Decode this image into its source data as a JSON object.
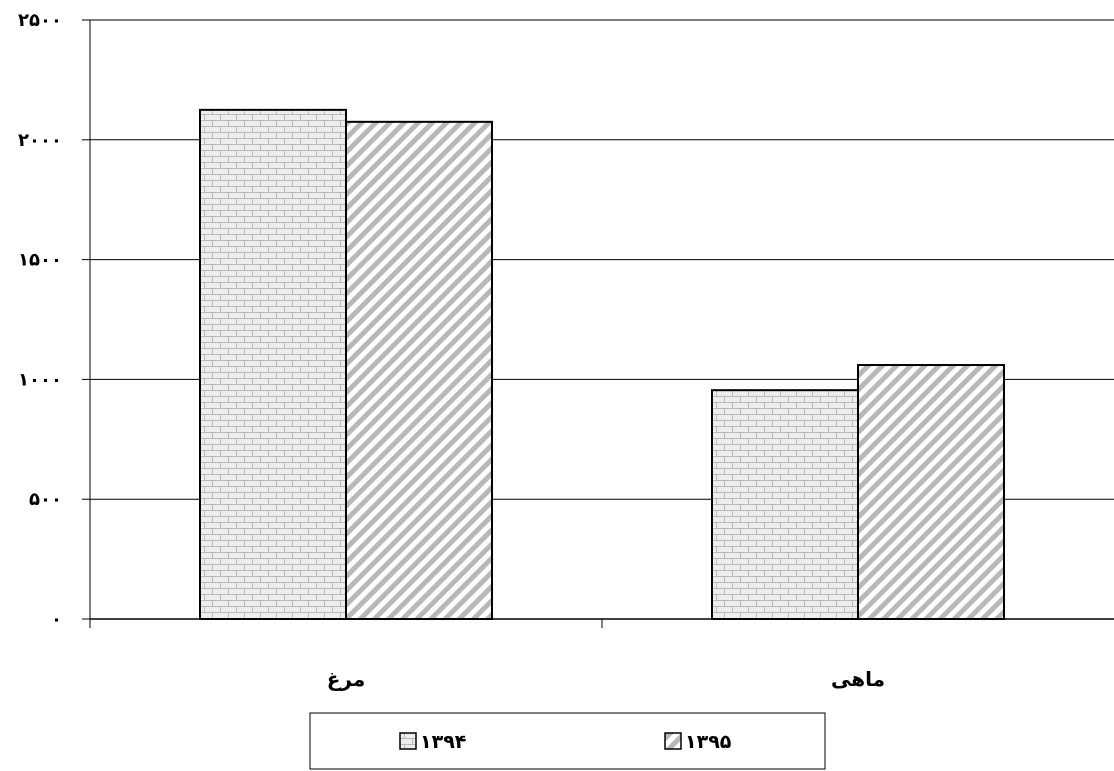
{
  "chart_data": {
    "type": "bar",
    "categories": [
      "مرغ",
      "ماهی"
    ],
    "series": [
      {
        "name": "۱۳۹۴",
        "values": [
          2125,
          955
        ],
        "pattern": "brick"
      },
      {
        "name": "۱۳۹۵",
        "values": [
          2075,
          1060
        ],
        "pattern": "diagonal"
      }
    ],
    "ylim": [
      0,
      2500
    ],
    "yticks": [
      0,
      500,
      1000,
      1500,
      2000,
      2500
    ],
    "ytick_labels": [
      "۰",
      "۵۰۰",
      "۱۰۰۰",
      "۱۵۰۰",
      "۲۰۰۰",
      "۲۵۰۰"
    ],
    "title": "",
    "xlabel": "",
    "ylabel": "",
    "grid": true,
    "legend_position": "bottom",
    "colors": {
      "bar_fill": "#e6e6e6",
      "pattern_stroke": "#b4b4b4",
      "axis": "#000000"
    }
  }
}
